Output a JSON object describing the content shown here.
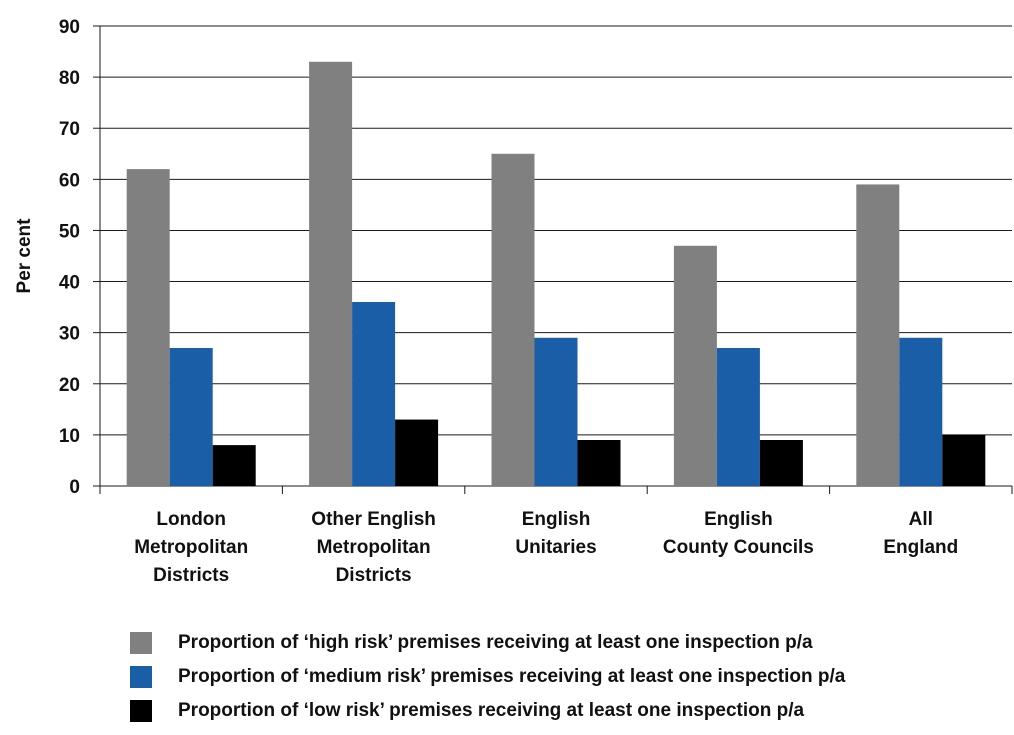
{
  "chart_data": {
    "type": "bar",
    "ylabel": "Per cent",
    "xlabel": "",
    "ylim": [
      0,
      90
    ],
    "yticks": [
      0,
      10,
      20,
      30,
      40,
      50,
      60,
      70,
      80,
      90
    ],
    "grid": true,
    "legend_position": "bottom",
    "categories": [
      [
        "London",
        "Metropolitan",
        "Districts"
      ],
      [
        "Other English",
        "Metropolitan",
        "Districts"
      ],
      [
        "English",
        "Unitaries"
      ],
      [
        "English",
        "County Councils"
      ],
      [
        "All",
        "England"
      ]
    ],
    "series": [
      {
        "name": "Proportion of ‘high risk’ premises receiving at least one inspection p/a",
        "color": "#808080",
        "values": [
          62,
          83,
          65,
          47,
          59
        ]
      },
      {
        "name": "Proportion of ‘medium risk’ premises receiving at least one inspection p/a",
        "color": "#1a5ea8",
        "values": [
          27,
          36,
          29,
          27,
          29
        ]
      },
      {
        "name": "Proportion of ‘low risk’ premises receiving at least one inspection p/a",
        "color": "#000000",
        "values": [
          8,
          13,
          9,
          9,
          10
        ]
      }
    ]
  }
}
